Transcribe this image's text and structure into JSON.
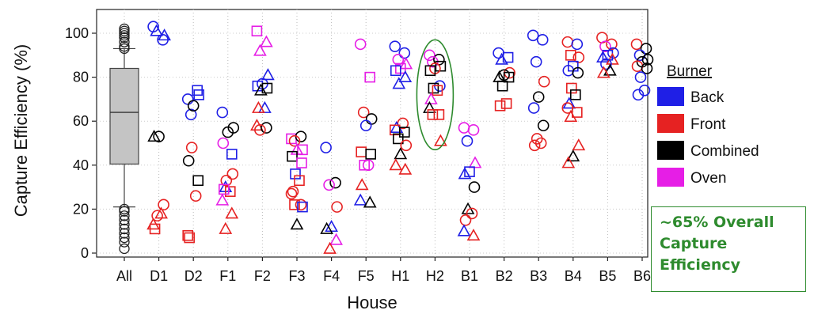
{
  "chart_data": {
    "type": "scatter",
    "title": "",
    "xlabel": "House",
    "ylabel": "Capture Efficiency (%)",
    "ylim": [
      0,
      105
    ],
    "yticks": [
      0,
      20,
      40,
      60,
      80,
      100
    ],
    "grid": "vertical-dotted",
    "categories": [
      "All",
      "D1",
      "D2",
      "F1",
      "F2",
      "F3",
      "F4",
      "F5",
      "H1",
      "H2",
      "B1",
      "B2",
      "B3",
      "B4",
      "B5",
      "B6"
    ],
    "legend": {
      "title": "Burner",
      "placement": "right",
      "entries": [
        {
          "name": "Back",
          "color": "#1f1fe6"
        },
        {
          "name": "Front",
          "color": "#e62222"
        },
        {
          "name": "Combined",
          "color": "#000000"
        },
        {
          "name": "Oven",
          "color": "#e61ee6"
        }
      ]
    },
    "boxplot": {
      "category": "All",
      "whisker_low": 21,
      "q1": 40.5,
      "median": 64,
      "q3": 84,
      "whisker_high": 93,
      "outliers": [
        2,
        5,
        7,
        9,
        11,
        13,
        15,
        17,
        19,
        20,
        93,
        94,
        96,
        98,
        99,
        100,
        101,
        102
      ]
    },
    "highlight": {
      "category": "H2",
      "shape": "ellipse",
      "color": "#2e8b2e",
      "y_range": [
        47,
        97
      ]
    },
    "annotation": [
      "~65% Overall",
      "Capture",
      "Efficiency"
    ],
    "markers": {
      "Back": "circle",
      "Front": "circle",
      "Combined": "circle",
      "Oven": "square or triangle"
    },
    "points": [
      {
        "cat": "D1",
        "s": "Back",
        "m": "circle",
        "y": 103
      },
      {
        "cat": "D1",
        "s": "Back",
        "m": "circle",
        "y": 97
      },
      {
        "cat": "D1",
        "s": "Back",
        "m": "triangle",
        "y": 101
      },
      {
        "cat": "D1",
        "s": "Back",
        "m": "triangle",
        "y": 99
      },
      {
        "cat": "D1",
        "s": "Combined",
        "m": "circle",
        "y": 53
      },
      {
        "cat": "D1",
        "s": "Combined",
        "m": "triangle",
        "y": 53
      },
      {
        "cat": "D1",
        "s": "Front",
        "m": "circle",
        "y": 22
      },
      {
        "cat": "D1",
        "s": "Front",
        "m": "circle",
        "y": 17
      },
      {
        "cat": "D1",
        "s": "Front",
        "m": "triangle",
        "y": 18
      },
      {
        "cat": "D1",
        "s": "Front",
        "m": "square",
        "y": 11
      },
      {
        "cat": "D1",
        "s": "Front",
        "m": "triangle",
        "y": 13
      },
      {
        "cat": "D2",
        "s": "Back",
        "m": "circle",
        "y": 70
      },
      {
        "cat": "D2",
        "s": "Back",
        "m": "square",
        "y": 74
      },
      {
        "cat": "D2",
        "s": "Back",
        "m": "circle",
        "y": 63
      },
      {
        "cat": "D2",
        "s": "Back",
        "m": "square",
        "y": 72
      },
      {
        "cat": "D2",
        "s": "Combined",
        "m": "circle",
        "y": 67
      },
      {
        "cat": "D2",
        "s": "Combined",
        "m": "circle",
        "y": 42
      },
      {
        "cat": "D2",
        "s": "Combined",
        "m": "square",
        "y": 33
      },
      {
        "cat": "D2",
        "s": "Front",
        "m": "circle",
        "y": 48
      },
      {
        "cat": "D2",
        "s": "Front",
        "m": "circle",
        "y": 26
      },
      {
        "cat": "D2",
        "s": "Front",
        "m": "square",
        "y": 7
      },
      {
        "cat": "D2",
        "s": "Front",
        "m": "square",
        "y": 8
      },
      {
        "cat": "F1",
        "s": "Back",
        "m": "circle",
        "y": 64
      },
      {
        "cat": "F1",
        "s": "Back",
        "m": "square",
        "y": 45
      },
      {
        "cat": "F1",
        "s": "Back",
        "m": "triangle",
        "y": 30
      },
      {
        "cat": "F1",
        "s": "Combined",
        "m": "circle",
        "y": 57
      },
      {
        "cat": "F1",
        "s": "Combined",
        "m": "circle",
        "y": 55
      },
      {
        "cat": "F1",
        "s": "Oven",
        "m": "circle",
        "y": 50
      },
      {
        "cat": "F1",
        "s": "Front",
        "m": "circle",
        "y": 36
      },
      {
        "cat": "F1",
        "s": "Front",
        "m": "circle",
        "y": 33
      },
      {
        "cat": "F1",
        "s": "Front",
        "m": "square",
        "y": 28
      },
      {
        "cat": "F1",
        "s": "Oven",
        "m": "square",
        "y": 29
      },
      {
        "cat": "F1",
        "s": "Oven",
        "m": "triangle",
        "y": 24
      },
      {
        "cat": "F1",
        "s": "Front",
        "m": "triangle",
        "y": 18
      },
      {
        "cat": "F1",
        "s": "Front",
        "m": "triangle",
        "y": 11
      },
      {
        "cat": "F2",
        "s": "Oven",
        "m": "square",
        "y": 101
      },
      {
        "cat": "F2",
        "s": "Oven",
        "m": "triangle",
        "y": 96
      },
      {
        "cat": "F2",
        "s": "Oven",
        "m": "triangle",
        "y": 92
      },
      {
        "cat": "F2",
        "s": "Back",
        "m": "triangle",
        "y": 81
      },
      {
        "cat": "F2",
        "s": "Back",
        "m": "circle",
        "y": 77
      },
      {
        "cat": "F2",
        "s": "Back",
        "m": "square",
        "y": 76
      },
      {
        "cat": "F2",
        "s": "Combined",
        "m": "square",
        "y": 75
      },
      {
        "cat": "F2",
        "s": "Combined",
        "m": "triangle",
        "y": 74
      },
      {
        "cat": "F2",
        "s": "Back",
        "m": "triangle",
        "y": 66
      },
      {
        "cat": "F2",
        "s": "Front",
        "m": "triangle",
        "y": 66
      },
      {
        "cat": "F2",
        "s": "Front",
        "m": "triangle",
        "y": 58
      },
      {
        "cat": "F2",
        "s": "Combined",
        "m": "circle",
        "y": 57
      },
      {
        "cat": "F2",
        "s": "Front",
        "m": "circle",
        "y": 56
      },
      {
        "cat": "F3",
        "s": "Oven",
        "m": "square",
        "y": 52
      },
      {
        "cat": "F3",
        "s": "Combined",
        "m": "circle",
        "y": 53
      },
      {
        "cat": "F3",
        "s": "Front",
        "m": "circle",
        "y": 51
      },
      {
        "cat": "F3",
        "s": "Oven",
        "m": "square",
        "y": 47
      },
      {
        "cat": "F3",
        "s": "Oven",
        "m": "triangle",
        "y": 47
      },
      {
        "cat": "F3",
        "s": "Combined",
        "m": "square",
        "y": 44
      },
      {
        "cat": "F3",
        "s": "Oven",
        "m": "square",
        "y": 41
      },
      {
        "cat": "F3",
        "s": "Back",
        "m": "square",
        "y": 36
      },
      {
        "cat": "F3",
        "s": "Front",
        "m": "square",
        "y": 33
      },
      {
        "cat": "F3",
        "s": "Front",
        "m": "circle",
        "y": 28
      },
      {
        "cat": "F3",
        "s": "Front",
        "m": "circle",
        "y": 27
      },
      {
        "cat": "F3",
        "s": "Front",
        "m": "circle",
        "y": 22
      },
      {
        "cat": "F3",
        "s": "Front",
        "m": "square",
        "y": 22
      },
      {
        "cat": "F3",
        "s": "Back",
        "m": "square",
        "y": 21
      },
      {
        "cat": "F3",
        "s": "Combined",
        "m": "triangle",
        "y": 13
      },
      {
        "cat": "F4",
        "s": "Back",
        "m": "circle",
        "y": 48
      },
      {
        "cat": "F4",
        "s": "Combined",
        "m": "circle",
        "y": 32
      },
      {
        "cat": "F4",
        "s": "Oven",
        "m": "circle",
        "y": 31
      },
      {
        "cat": "F4",
        "s": "Front",
        "m": "circle",
        "y": 21
      },
      {
        "cat": "F4",
        "s": "Back",
        "m": "triangle",
        "y": 12
      },
      {
        "cat": "F4",
        "s": "Combined",
        "m": "triangle",
        "y": 11
      },
      {
        "cat": "F4",
        "s": "Oven",
        "m": "triangle",
        "y": 6
      },
      {
        "cat": "F4",
        "s": "Front",
        "m": "triangle",
        "y": 2
      },
      {
        "cat": "F5",
        "s": "Oven",
        "m": "circle",
        "y": 95
      },
      {
        "cat": "F5",
        "s": "Oven",
        "m": "square",
        "y": 80
      },
      {
        "cat": "F5",
        "s": "Front",
        "m": "circle",
        "y": 64
      },
      {
        "cat": "F5",
        "s": "Combined",
        "m": "circle",
        "y": 61
      },
      {
        "cat": "F5",
        "s": "Back",
        "m": "circle",
        "y": 58
      },
      {
        "cat": "F5",
        "s": "Front",
        "m": "square",
        "y": 46
      },
      {
        "cat": "F5",
        "s": "Combined",
        "m": "square",
        "y": 45
      },
      {
        "cat": "F5",
        "s": "Oven",
        "m": "square",
        "y": 40
      },
      {
        "cat": "F5",
        "s": "Oven",
        "m": "circle",
        "y": 40
      },
      {
        "cat": "F5",
        "s": "Front",
        "m": "triangle",
        "y": 31
      },
      {
        "cat": "F5",
        "s": "Back",
        "m": "triangle",
        "y": 24
      },
      {
        "cat": "F5",
        "s": "Combined",
        "m": "triangle",
        "y": 23
      },
      {
        "cat": "H1",
        "s": "Back",
        "m": "circle",
        "y": 94
      },
      {
        "cat": "H1",
        "s": "Back",
        "m": "circle",
        "y": 91
      },
      {
        "cat": "H1",
        "s": "Oven",
        "m": "circle",
        "y": 88
      },
      {
        "cat": "H1",
        "s": "Oven",
        "m": "triangle",
        "y": 86
      },
      {
        "cat": "H1",
        "s": "Oven",
        "m": "square",
        "y": 84
      },
      {
        "cat": "H1",
        "s": "Back",
        "m": "square",
        "y": 83
      },
      {
        "cat": "H1",
        "s": "Back",
        "m": "triangle",
        "y": 80
      },
      {
        "cat": "H1",
        "s": "Back",
        "m": "triangle",
        "y": 77
      },
      {
        "cat": "H1",
        "s": "Front",
        "m": "circle",
        "y": 59
      },
      {
        "cat": "H1",
        "s": "Back",
        "m": "triangle",
        "y": 57
      },
      {
        "cat": "H1",
        "s": "Front",
        "m": "square",
        "y": 56
      },
      {
        "cat": "H1",
        "s": "Combined",
        "m": "square",
        "y": 55
      },
      {
        "cat": "H1",
        "s": "Combined",
        "m": "square",
        "y": 52
      },
      {
        "cat": "H1",
        "s": "Front",
        "m": "circle",
        "y": 49
      },
      {
        "cat": "H1",
        "s": "Combined",
        "m": "triangle",
        "y": 45
      },
      {
        "cat": "H1",
        "s": "Front",
        "m": "triangle",
        "y": 40
      },
      {
        "cat": "H1",
        "s": "Front",
        "m": "triangle",
        "y": 38
      },
      {
        "cat": "H2",
        "s": "Oven",
        "m": "circle",
        "y": 90
      },
      {
        "cat": "H2",
        "s": "Combined",
        "m": "circle",
        "y": 88
      },
      {
        "cat": "H2",
        "s": "Oven",
        "m": "circle",
        "y": 87
      },
      {
        "cat": "H2",
        "s": "Combined",
        "m": "square",
        "y": 85
      },
      {
        "cat": "H2",
        "s": "Front",
        "m": "circle",
        "y": 84
      },
      {
        "cat": "H2",
        "s": "Combined",
        "m": "square",
        "y": 83
      },
      {
        "cat": "H2",
        "s": "Back",
        "m": "circle",
        "y": 76
      },
      {
        "cat": "H2",
        "s": "Combined",
        "m": "square",
        "y": 75
      },
      {
        "cat": "H2",
        "s": "Front",
        "m": "square",
        "y": 74
      },
      {
        "cat": "H2",
        "s": "Oven",
        "m": "triangle",
        "y": 70
      },
      {
        "cat": "H2",
        "s": "Combined",
        "m": "triangle",
        "y": 66
      },
      {
        "cat": "H2",
        "s": "Front",
        "m": "square",
        "y": 63
      },
      {
        "cat": "H2",
        "s": "Front",
        "m": "square",
        "y": 63
      },
      {
        "cat": "H2",
        "s": "Front",
        "m": "triangle",
        "y": 51
      },
      {
        "cat": "B1",
        "s": "Oven",
        "m": "circle",
        "y": 57
      },
      {
        "cat": "B1",
        "s": "Oven",
        "m": "circle",
        "y": 56
      },
      {
        "cat": "B1",
        "s": "Back",
        "m": "circle",
        "y": 51
      },
      {
        "cat": "B1",
        "s": "Oven",
        "m": "triangle",
        "y": 41
      },
      {
        "cat": "B1",
        "s": "Back",
        "m": "square",
        "y": 37
      },
      {
        "cat": "B1",
        "s": "Back",
        "m": "triangle",
        "y": 36
      },
      {
        "cat": "B1",
        "s": "Combined",
        "m": "circle",
        "y": 30
      },
      {
        "cat": "B1",
        "s": "Combined",
        "m": "triangle",
        "y": 20
      },
      {
        "cat": "B1",
        "s": "Front",
        "m": "circle",
        "y": 18
      },
      {
        "cat": "B1",
        "s": "Front",
        "m": "circle",
        "y": 15
      },
      {
        "cat": "B1",
        "s": "Back",
        "m": "triangle",
        "y": 10
      },
      {
        "cat": "B1",
        "s": "Front",
        "m": "triangle",
        "y": 8
      },
      {
        "cat": "B2",
        "s": "Back",
        "m": "circle",
        "y": 91
      },
      {
        "cat": "B2",
        "s": "Back",
        "m": "square",
        "y": 89
      },
      {
        "cat": "B2",
        "s": "Back",
        "m": "triangle",
        "y": 88
      },
      {
        "cat": "B2",
        "s": "Front",
        "m": "circle",
        "y": 82
      },
      {
        "cat": "B2",
        "s": "Combined",
        "m": "circle",
        "y": 81
      },
      {
        "cat": "B2",
        "s": "Combined",
        "m": "triangle",
        "y": 80
      },
      {
        "cat": "B2",
        "s": "Combined",
        "m": "square",
        "y": 80
      },
      {
        "cat": "B2",
        "s": "Combined",
        "m": "square",
        "y": 76
      },
      {
        "cat": "B2",
        "s": "Front",
        "m": "square",
        "y": 68
      },
      {
        "cat": "B2",
        "s": "Front",
        "m": "square",
        "y": 67
      },
      {
        "cat": "B3",
        "s": "Back",
        "m": "circle",
        "y": 99
      },
      {
        "cat": "B3",
        "s": "Back",
        "m": "circle",
        "y": 97
      },
      {
        "cat": "B3",
        "s": "Back",
        "m": "circle",
        "y": 87
      },
      {
        "cat": "B3",
        "s": "Front",
        "m": "circle",
        "y": 78
      },
      {
        "cat": "B3",
        "s": "Combined",
        "m": "circle",
        "y": 71
      },
      {
        "cat": "B3",
        "s": "Back",
        "m": "circle",
        "y": 66
      },
      {
        "cat": "B3",
        "s": "Combined",
        "m": "circle",
        "y": 58
      },
      {
        "cat": "B3",
        "s": "Front",
        "m": "circle",
        "y": 52
      },
      {
        "cat": "B3",
        "s": "Front",
        "m": "circle",
        "y": 50
      },
      {
        "cat": "B3",
        "s": "Front",
        "m": "circle",
        "y": 49
      },
      {
        "cat": "B4",
        "s": "Front",
        "m": "circle",
        "y": 96
      },
      {
        "cat": "B4",
        "s": "Back",
        "m": "circle",
        "y": 95
      },
      {
        "cat": "B4",
        "s": "Front",
        "m": "square",
        "y": 90
      },
      {
        "cat": "B4",
        "s": "Front",
        "m": "circle",
        "y": 89
      },
      {
        "cat": "B4",
        "s": "Back",
        "m": "square",
        "y": 85
      },
      {
        "cat": "B4",
        "s": "Back",
        "m": "circle",
        "y": 83
      },
      {
        "cat": "B4",
        "s": "Combined",
        "m": "circle",
        "y": 82
      },
      {
        "cat": "B4",
        "s": "Front",
        "m": "square",
        "y": 75
      },
      {
        "cat": "B4",
        "s": "Combined",
        "m": "square",
        "y": 72
      },
      {
        "cat": "B4",
        "s": "Back",
        "m": "triangle",
        "y": 68
      },
      {
        "cat": "B4",
        "s": "Front",
        "m": "circle",
        "y": 66
      },
      {
        "cat": "B4",
        "s": "Front",
        "m": "square",
        "y": 64
      },
      {
        "cat": "B4",
        "s": "Front",
        "m": "triangle",
        "y": 62
      },
      {
        "cat": "B4",
        "s": "Front",
        "m": "triangle",
        "y": 49
      },
      {
        "cat": "B4",
        "s": "Combined",
        "m": "triangle",
        "y": 44
      },
      {
        "cat": "B4",
        "s": "Front",
        "m": "triangle",
        "y": 41
      },
      {
        "cat": "B5",
        "s": "Front",
        "m": "circle",
        "y": 98
      },
      {
        "cat": "B5",
        "s": "Front",
        "m": "circle",
        "y": 95
      },
      {
        "cat": "B5",
        "s": "Oven",
        "m": "circle",
        "y": 94
      },
      {
        "cat": "B5",
        "s": "Back",
        "m": "circle",
        "y": 91
      },
      {
        "cat": "B5",
        "s": "Back",
        "m": "square",
        "y": 90
      },
      {
        "cat": "B5",
        "s": "Back",
        "m": "triangle",
        "y": 89
      },
      {
        "cat": "B5",
        "s": "Front",
        "m": "triangle",
        "y": 88
      },
      {
        "cat": "B5",
        "s": "Back",
        "m": "circle",
        "y": 86
      },
      {
        "cat": "B5",
        "s": "Combined",
        "m": "triangle",
        "y": 83
      },
      {
        "cat": "B5",
        "s": "Front",
        "m": "triangle",
        "y": 82
      },
      {
        "cat": "B6",
        "s": "Front",
        "m": "circle",
        "y": 95
      },
      {
        "cat": "B6",
        "s": "Combined",
        "m": "circle",
        "y": 93
      },
      {
        "cat": "B6",
        "s": "Back",
        "m": "circle",
        "y": 90
      },
      {
        "cat": "B6",
        "s": "Combined",
        "m": "circle",
        "y": 88
      },
      {
        "cat": "B6",
        "s": "Combined",
        "m": "circle",
        "y": 87
      },
      {
        "cat": "B6",
        "s": "Front",
        "m": "circle",
        "y": 85
      },
      {
        "cat": "B6",
        "s": "Combined",
        "m": "circle",
        "y": 84
      },
      {
        "cat": "B6",
        "s": "Back",
        "m": "circle",
        "y": 80
      },
      {
        "cat": "B6",
        "s": "Back",
        "m": "circle",
        "y": 74
      },
      {
        "cat": "B6",
        "s": "Back",
        "m": "circle",
        "y": 72
      }
    ]
  }
}
